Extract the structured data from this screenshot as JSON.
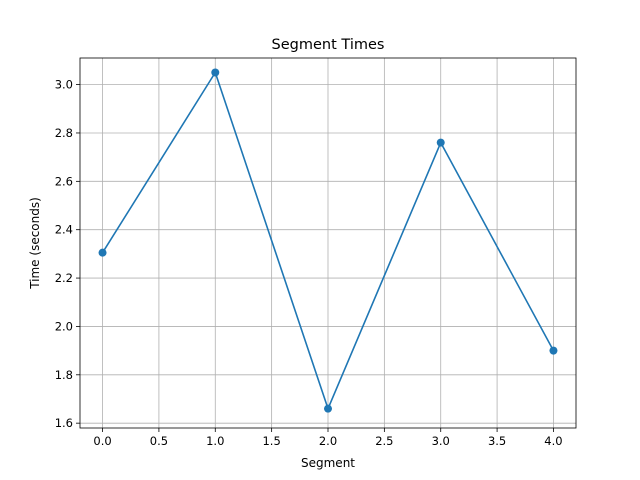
{
  "chart_data": {
    "type": "line",
    "title": "Segment Times",
    "xlabel": "Segment",
    "ylabel": "Time (seconds)",
    "xlim": [
      -0.2,
      4.2
    ],
    "ylim": [
      1.58,
      3.11
    ],
    "xticks": [
      0.0,
      0.5,
      1.0,
      1.5,
      2.0,
      2.5,
      3.0,
      3.5,
      4.0
    ],
    "xtick_labels": [
      "0.0",
      "0.5",
      "1.0",
      "1.5",
      "2.0",
      "2.5",
      "3.0",
      "3.5",
      "4.0"
    ],
    "yticks": [
      1.6,
      1.8,
      2.0,
      2.2,
      2.4,
      2.6,
      2.8,
      3.0
    ],
    "ytick_labels": [
      "1.6",
      "1.8",
      "2.0",
      "2.2",
      "2.4",
      "2.6",
      "2.8",
      "3.0"
    ],
    "grid": true,
    "marker": "circle",
    "series": [
      {
        "color": "#1f77b4",
        "x": [
          0,
          1,
          2,
          3,
          4
        ],
        "y": [
          2.305,
          3.05,
          1.66,
          2.76,
          1.9
        ]
      }
    ]
  }
}
